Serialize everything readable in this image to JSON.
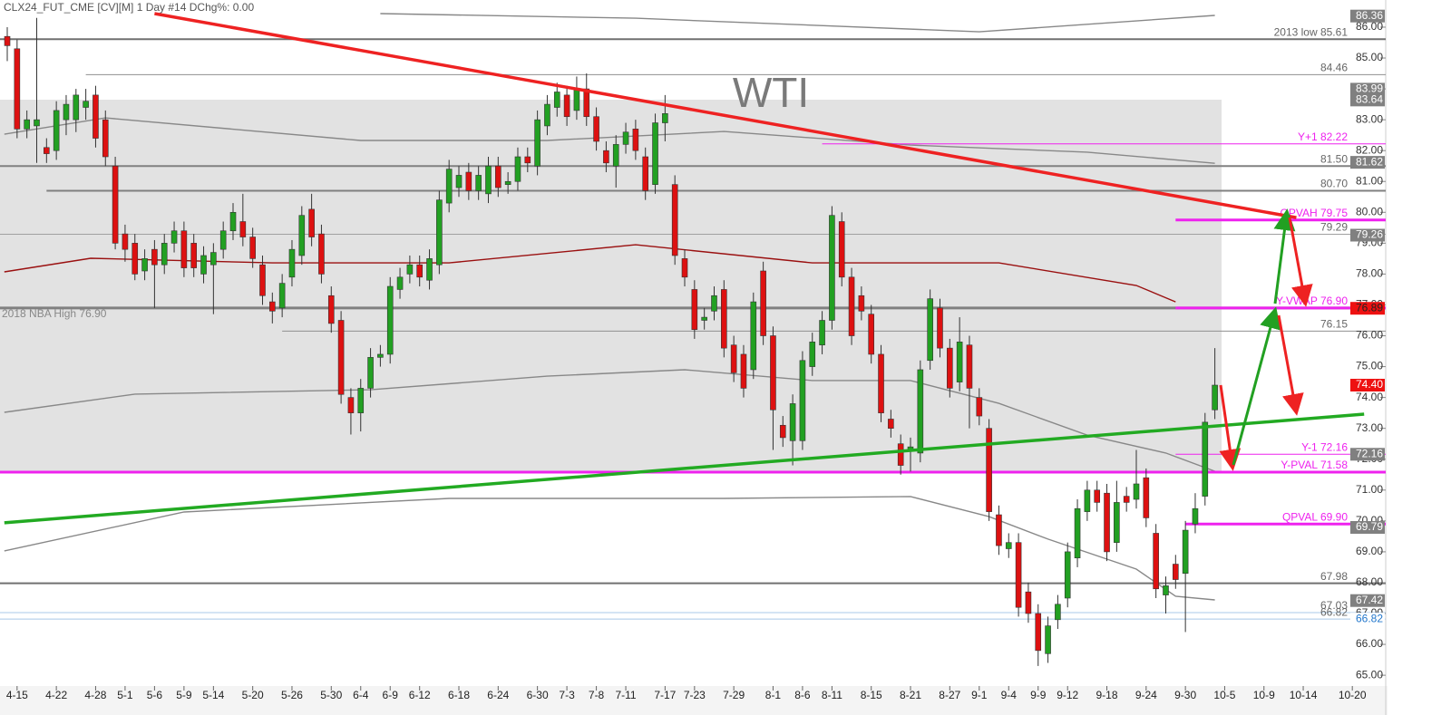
{
  "chart_data": {
    "type": "candlestick",
    "title": "CLX24_FUT_CME [CV][M]  1 Day #14 DChg%: 0.00",
    "annotation": "WTI",
    "up_color": "#22a022",
    "down_color": "#dd1111",
    "xlim": [
      -0.74,
      139.2
    ],
    "ylim": [
      64.71,
      86.88
    ],
    "xticks": [
      {
        "value": 1,
        "label": "4-15"
      },
      {
        "value": 5,
        "label": "4-22"
      },
      {
        "value": 9,
        "label": "4-28"
      },
      {
        "value": 12,
        "label": "5-1"
      },
      {
        "value": 15,
        "label": "5-6"
      },
      {
        "value": 18,
        "label": "5-9"
      },
      {
        "value": 21,
        "label": "5-14"
      },
      {
        "value": 25,
        "label": "5-20"
      },
      {
        "value": 29,
        "label": "5-26"
      },
      {
        "value": 33,
        "label": "5-30"
      },
      {
        "value": 36,
        "label": "6-4"
      },
      {
        "value": 39,
        "label": "6-9"
      },
      {
        "value": 42,
        "label": "6-12"
      },
      {
        "value": 46,
        "label": "6-18"
      },
      {
        "value": 50,
        "label": "6-24"
      },
      {
        "value": 54,
        "label": "6-30"
      },
      {
        "value": 57,
        "label": "7-3"
      },
      {
        "value": 60,
        "label": "7-8"
      },
      {
        "value": 63,
        "label": "7-11"
      },
      {
        "value": 67,
        "label": "7-17"
      },
      {
        "value": 70,
        "label": "7-23"
      },
      {
        "value": 74,
        "label": "7-29"
      },
      {
        "value": 78,
        "label": "8-1"
      },
      {
        "value": 81,
        "label": "8-6"
      },
      {
        "value": 84,
        "label": "8-11"
      },
      {
        "value": 88,
        "label": "8-15"
      },
      {
        "value": 92,
        "label": "8-21"
      },
      {
        "value": 96,
        "label": "8-27"
      },
      {
        "value": 99,
        "label": "9-1"
      },
      {
        "value": 102,
        "label": "9-4"
      },
      {
        "value": 105,
        "label": "9-9"
      },
      {
        "value": 108,
        "label": "9-12"
      },
      {
        "value": 112,
        "label": "9-18"
      },
      {
        "value": 116,
        "label": "9-24"
      },
      {
        "value": 120,
        "label": "9-30"
      },
      {
        "value": 124,
        "label": "10-5"
      },
      {
        "value": 128,
        "label": "10-9"
      },
      {
        "value": 132,
        "label": "10-14"
      },
      {
        "value": 137,
        "label": "10-20"
      }
    ],
    "yticks": [
      {
        "value": 65,
        "label": "65.00"
      },
      {
        "value": 66,
        "label": "66.00"
      },
      {
        "value": 67,
        "label": "67.00"
      },
      {
        "value": 68,
        "label": "68.00"
      },
      {
        "value": 69,
        "label": "69.00"
      },
      {
        "value": 70,
        "label": "70.00"
      },
      {
        "value": 71,
        "label": "71.00"
      },
      {
        "value": 72,
        "label": "72.00"
      },
      {
        "value": 73,
        "label": "73.00"
      },
      {
        "value": 74,
        "label": "74.00"
      },
      {
        "value": 75,
        "label": "75.00"
      },
      {
        "value": 76,
        "label": "76.00"
      },
      {
        "value": 77,
        "label": "77.00"
      },
      {
        "value": 78,
        "label": "78.00"
      },
      {
        "value": 79,
        "label": "79.00"
      },
      {
        "value": 80,
        "label": "80.00"
      },
      {
        "value": 81,
        "label": "81.00"
      },
      {
        "value": 82,
        "label": "82.00"
      },
      {
        "value": 83,
        "label": "83.00"
      },
      {
        "value": 84,
        "label": "84.00"
      },
      {
        "value": 85,
        "label": "85.00"
      },
      {
        "value": 86,
        "label": "86.00"
      }
    ],
    "open": [
      85.7,
      85.3,
      82.7,
      82.8,
      82.1,
      82.0,
      83.0,
      83.0,
      83.4,
      83.8,
      83.0,
      81.5,
      79.3,
      79.0,
      78.1,
      78.8,
      78.3,
      79.0,
      79.4,
      79.0,
      78.0,
      78.3,
      78.8,
      79.4,
      79.7,
      79.2,
      78.3,
      77.1,
      76.9,
      77.9,
      78.6,
      80.1,
      79.3,
      77.3,
      76.5,
      74.0,
      73.5,
      74.3,
      75.3,
      75.4,
      77.5,
      78.0,
      78.3,
      77.8,
      78.3,
      80.3,
      80.8,
      81.3,
      80.7,
      80.6,
      81.5,
      80.9,
      81.0,
      81.8,
      81.5,
      82.8,
      83.4,
      83.8,
      83.3,
      84.0,
      83.1,
      82.0,
      81.5,
      82.2,
      82.7,
      81.8,
      80.9,
      82.9,
      80.9,
      78.5,
      77.5,
      76.5,
      76.8,
      77.5,
      75.7,
      75.4,
      74.9,
      78.1,
      76.0,
      73.1,
      72.6,
      72.6,
      75.0,
      75.7,
      76.5,
      79.7,
      77.9,
      77.3,
      76.7,
      75.4,
      73.3,
      72.5,
      72.3,
      72.2,
      75.2,
      76.9,
      75.6,
      74.5,
      75.7,
      74.0,
      73.0,
      70.2,
      69.1,
      69.3,
      67.7,
      67.0,
      65.7,
      66.8,
      67.5,
      68.8,
      70.3,
      71.0,
      70.9,
      69.3,
      70.8,
      70.7,
      71.4,
      69.6,
      67.6,
      68.6,
      68.3,
      69.9,
      70.8,
      73.6
    ],
    "high": [
      86.0,
      85.6,
      83.3,
      86.3,
      82.4,
      83.6,
      83.8,
      84.0,
      84.0,
      84.1,
      83.3,
      81.8,
      79.6,
      79.3,
      78.8,
      79.1,
      79.3,
      79.7,
      79.7,
      79.3,
      78.9,
      79.0,
      79.7,
      80.3,
      80.6,
      79.5,
      78.6,
      77.4,
      78.0,
      79.1,
      80.2,
      80.6,
      79.6,
      77.6,
      76.8,
      74.3,
      74.6,
      75.6,
      75.7,
      77.9,
      78.2,
      78.6,
      78.6,
      78.8,
      80.7,
      81.7,
      81.5,
      81.6,
      81.5,
      81.8,
      81.8,
      81.3,
      82.1,
      82.1,
      83.3,
      83.8,
      84.2,
      84.1,
      84.4,
      84.5,
      83.4,
      82.3,
      82.5,
      82.9,
      83.0,
      82.1,
      83.2,
      83.8,
      81.2,
      78.8,
      77.8,
      76.9,
      77.6,
      77.8,
      76.0,
      75.7,
      77.4,
      78.4,
      76.3,
      73.4,
      74.1,
      75.5,
      76.1,
      76.8,
      80.2,
      80.0,
      78.2,
      77.6,
      77.0,
      75.7,
      73.6,
      72.8,
      72.7,
      75.2,
      77.5,
      77.2,
      75.9,
      76.6,
      76.0,
      74.3,
      73.3,
      70.5,
      69.6,
      69.6,
      68.0,
      67.3,
      66.9,
      67.6,
      69.3,
      70.7,
      71.3,
      71.3,
      71.2,
      71.3,
      71.1,
      72.3,
      71.7,
      69.9,
      68.2,
      68.9,
      70.0,
      70.9,
      73.5,
      75.6
    ],
    "low": [
      84.9,
      82.4,
      82.4,
      81.6,
      81.6,
      81.7,
      82.5,
      82.6,
      83.0,
      82.1,
      81.5,
      78.8,
      78.4,
      77.8,
      77.8,
      76.9,
      78.0,
      78.7,
      77.9,
      77.9,
      77.7,
      76.7,
      78.5,
      79.1,
      78.9,
      78.2,
      77.0,
      76.4,
      76.6,
      77.6,
      78.3,
      78.9,
      77.7,
      76.1,
      73.8,
      72.8,
      72.9,
      74.0,
      75.0,
      75.1,
      77.2,
      77.7,
      77.6,
      77.5,
      78.0,
      80.0,
      80.5,
      80.4,
      80.4,
      80.3,
      80.5,
      80.6,
      80.7,
      81.3,
      81.2,
      82.5,
      83.1,
      82.8,
      83.0,
      82.8,
      82.0,
      81.3,
      80.8,
      81.9,
      81.7,
      80.4,
      80.6,
      82.3,
      78.3,
      77.6,
      75.9,
      76.2,
      76.5,
      75.3,
      74.5,
      74.0,
      74.6,
      75.7,
      72.3,
      72.4,
      71.8,
      72.3,
      74.7,
      75.4,
      76.2,
      77.6,
      75.7,
      76.5,
      75.1,
      73.2,
      72.7,
      71.5,
      71.6,
      71.9,
      74.9,
      75.3,
      74.0,
      74.2,
      73.0,
      73.1,
      70.0,
      68.9,
      68.8,
      66.9,
      66.7,
      65.3,
      65.4,
      66.5,
      67.2,
      68.5,
      70.0,
      70.3,
      68.7,
      69.0,
      70.3,
      70.4,
      69.8,
      67.5,
      67.0,
      67.8,
      66.4,
      69.6,
      70.5,
      73.3
    ],
    "close": [
      85.4,
      82.7,
      83.0,
      83.0,
      81.9,
      83.3,
      83.5,
      83.8,
      83.6,
      82.4,
      81.8,
      79.0,
      78.8,
      78.0,
      78.5,
      78.3,
      79.0,
      79.4,
      78.2,
      78.2,
      78.6,
      78.7,
      79.4,
      80.0,
      79.2,
      78.5,
      77.3,
      76.8,
      77.7,
      78.8,
      79.9,
      79.2,
      78.0,
      76.4,
      74.1,
      73.5,
      74.3,
      75.3,
      75.4,
      77.6,
      77.9,
      78.3,
      77.9,
      78.5,
      80.4,
      81.4,
      81.2,
      80.7,
      81.2,
      81.5,
      80.8,
      81.0,
      81.8,
      81.6,
      83.0,
      83.5,
      83.9,
      83.1,
      84.0,
      83.1,
      82.3,
      81.6,
      82.2,
      82.6,
      82.0,
      80.7,
      82.9,
      83.2,
      78.6,
      77.9,
      76.2,
      76.6,
      77.3,
      75.6,
      74.8,
      74.3,
      77.1,
      76.0,
      73.6,
      72.7,
      73.8,
      75.2,
      75.8,
      76.5,
      79.9,
      77.9,
      76.0,
      76.8,
      75.4,
      73.5,
      73.0,
      71.8,
      72.4,
      74.9,
      77.2,
      75.6,
      74.3,
      75.8,
      74.3,
      73.4,
      70.3,
      69.2,
      69.3,
      67.2,
      67.0,
      65.8,
      66.6,
      67.3,
      69.0,
      70.4,
      71.0,
      70.6,
      69.0,
      70.6,
      70.6,
      71.2,
      70.1,
      67.8,
      67.9,
      68.1,
      69.7,
      70.4,
      73.2,
      74.4
    ],
    "overlays": [
      {
        "color": "#9a1010",
        "x": [
          -0.3,
          8.5,
          27,
          45,
          64,
          82,
          101,
          115,
          119
        ],
        "values": [
          78.07,
          78.51,
          78.36,
          78.36,
          78.95,
          78.36,
          78.36,
          77.63,
          77.1
        ]
      },
      {
        "color": "#888888",
        "x": [
          -0.3,
          10,
          36,
          55,
          73,
          92,
          110,
          123
        ],
        "values": [
          82.53,
          83.06,
          82.33,
          82.33,
          82.62,
          82.18,
          81.95,
          81.59
        ]
      },
      {
        "color": "#888888",
        "x": [
          -0.3,
          13,
          37,
          55,
          69,
          82,
          92,
          101,
          110,
          118,
          123
        ],
        "values": [
          73.52,
          74.11,
          74.25,
          74.69,
          74.9,
          74.55,
          74.55,
          73.81,
          72.78,
          72.2,
          71.61
        ]
      },
      {
        "color": "#888888",
        "x": [
          -0.3,
          18,
          45,
          73,
          92,
          100,
          106,
          115,
          119,
          123
        ],
        "values": [
          69.03,
          70.29,
          70.73,
          70.73,
          70.79,
          70.14,
          69.41,
          68.44,
          67.56,
          67.44
        ]
      },
      {
        "color": "#888888",
        "x": [
          38,
          64,
          99,
          123
        ],
        "values": [
          86.44,
          86.29,
          85.85,
          86.38
        ]
      }
    ],
    "trendlines": [
      {
        "color": "#ee2222",
        "x": [
          15,
          131.3
        ],
        "values": [
          86.44,
          79.83
        ]
      },
      {
        "color": "#22aa22",
        "x": [
          -0.3,
          138.2
        ],
        "values": [
          69.94,
          73.46
        ]
      }
    ],
    "levels": [
      {
        "value": 85.61,
        "label": "2013 low 85.61",
        "color": "#707070",
        "width": 2
      },
      {
        "value": 84.46,
        "label": "84.46",
        "color": "#909090",
        "width": 1,
        "x_start": 8
      },
      {
        "value": 82.22,
        "label": "Y+1  82.22",
        "color": "#ee22ee",
        "width": 1,
        "x_start": 83
      },
      {
        "value": 81.5,
        "label": "81.50",
        "color": "#808080",
        "width": 2
      },
      {
        "value": 80.7,
        "label": "80.70",
        "color": "#808080",
        "width": 2,
        "x_start": 4
      },
      {
        "value": 79.75,
        "label": "QPVAH  79.75",
        "color": "#ee22ee",
        "width": 3,
        "x_start": 119
      },
      {
        "value": 79.29,
        "label": "79.29",
        "color": "#a0a0a0",
        "width": 1
      },
      {
        "value": 76.9,
        "label": "2018 NBA High  76.90",
        "color": "#808080",
        "width": 3,
        "side": "left"
      },
      {
        "value": 76.9,
        "label": "Y-VWAP  76.90",
        "color": "#ee22ee",
        "width": 3,
        "x_start": 119
      },
      {
        "value": 76.15,
        "label": "76.15",
        "color": "#909090",
        "width": 1,
        "x_start": 28
      },
      {
        "value": 72.16,
        "label": "Y-1  72.16",
        "color": "#ee22ee",
        "width": 1,
        "x_start": 119
      },
      {
        "value": 71.58,
        "label": "Y-PVAL  71.58",
        "color": "#ee22ee",
        "width": 3
      },
      {
        "value": 69.9,
        "label": "QPVAL  69.90",
        "color": "#ee22ee",
        "width": 3,
        "x_start": 120
      },
      {
        "value": 67.98,
        "label": "67.98",
        "color": "#707070",
        "width": 2
      },
      {
        "value": 67.03,
        "label": "67.03",
        "color": "#a8c8e8",
        "width": 1
      },
      {
        "value": 66.82,
        "label": "66.82",
        "color": "#a8c8e8",
        "width": 1
      }
    ],
    "tags": [
      {
        "value": 86.36,
        "label": "86.36",
        "color": "#808080",
        "text_color": "#ffffff"
      },
      {
        "value": 83.99,
        "label": "83.99",
        "color": "#808080",
        "text_color": "#ffffff"
      },
      {
        "value": 83.64,
        "label": "83.64",
        "color": "#808080",
        "text_color": "#ffffff"
      },
      {
        "value": 81.62,
        "label": "81.62",
        "color": "#808080",
        "text_color": "#ffffff"
      },
      {
        "value": 79.26,
        "label": "79.26",
        "color": "#808080",
        "text_color": "#ffffff"
      },
      {
        "value": 76.89,
        "label": "76.89",
        "color": "#ee1111",
        "text_color": "#222222"
      },
      {
        "value": 74.4,
        "label": "74.40",
        "color": "#ee1111",
        "text_color": "#ffffff"
      },
      {
        "value": 72.16,
        "label": "72.16",
        "color": "#808080",
        "text_color": "#ffffff"
      },
      {
        "value": 69.79,
        "label": "69.79",
        "color": "#808080",
        "text_color": "#ffffff"
      },
      {
        "value": 67.42,
        "label": "67.42",
        "color": "#808080",
        "text_color": "#ffffff"
      },
      {
        "value": 66.82,
        "label": "66.82",
        "color": "#ffffff",
        "text_color": "#2277cc"
      }
    ]
  }
}
